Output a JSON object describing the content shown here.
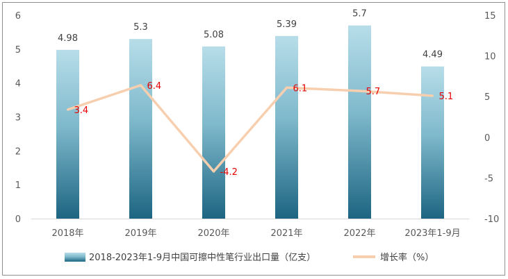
{
  "chart_data": {
    "type": "bar+line",
    "categories": [
      "2018年",
      "2019年",
      "2020年",
      "2021年",
      "2022年",
      "2023年1-9月"
    ],
    "series": [
      {
        "name": "2018-2023年1-9月中国可擦中性笔行业出口量（亿支）",
        "type": "bar",
        "axis": "left",
        "values": [
          4.98,
          5.3,
          5.08,
          5.39,
          5.7,
          4.49
        ],
        "labels": [
          "4.98",
          "5.3",
          "5.08",
          "5.39",
          "5.7",
          "4.49"
        ],
        "color_top": "#b7dde9",
        "color_bottom": "#1d6582"
      },
      {
        "name": "增长率（%）",
        "type": "line",
        "axis": "right",
        "values": [
          3.4,
          6.4,
          -4.2,
          6.1,
          5.7,
          5.1
        ],
        "labels": [
          "3.4",
          "6.4",
          "-4.2",
          "6.1",
          "5.7",
          "5.1"
        ],
        "color": "#f8cfae",
        "label_color": "#e60000"
      }
    ],
    "y_left": {
      "min": 0,
      "max": 6,
      "ticks": [
        "0",
        "1",
        "2",
        "3",
        "4",
        "5",
        "6"
      ]
    },
    "y_right": {
      "min": -10,
      "max": 15,
      "ticks": [
        "-10",
        "-5",
        "0",
        "5",
        "10",
        "15"
      ]
    },
    "grid": false,
    "legend": "bottom"
  }
}
